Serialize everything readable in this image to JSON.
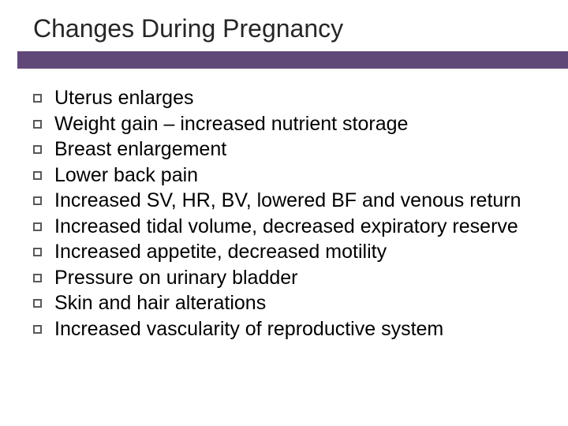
{
  "slide": {
    "title": "Changes During Pregnancy",
    "accent_bar_color": "#604878",
    "title_color": "#262626",
    "title_fontsize": 32,
    "bullet_marker_border_color": "#595959",
    "bullet_fontsize": 25,
    "bullets": [
      "Uterus enlarges",
      "Weight gain – increased nutrient storage",
      "Breast enlargement",
      "Lower back pain",
      "Increased SV, HR, BV, lowered BF and venous return",
      "Increased tidal volume, decreased expiratory reserve",
      "Increased appetite, decreased motility",
      "Pressure on urinary bladder",
      "Skin and hair alterations",
      "Increased vascularity of reproductive system"
    ]
  }
}
